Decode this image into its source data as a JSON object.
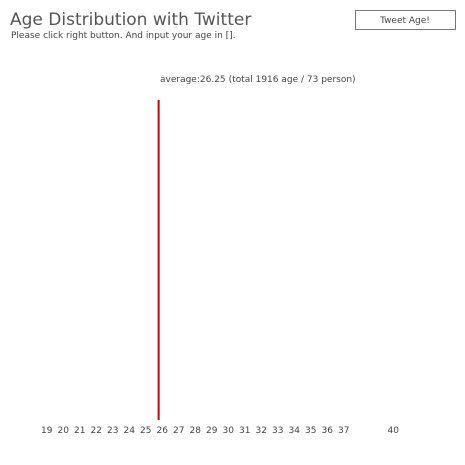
{
  "header": {
    "title": "Age Distribution with Twitter",
    "subtitle": "Please click right button. And input your age in []."
  },
  "button": {
    "label": "Tweet Age!"
  },
  "average": {
    "prefix": "average:",
    "value": 26.25,
    "detail": "(total 1916 age / 73 person)",
    "color": "#cc0000"
  },
  "axis": {
    "labels": [
      19,
      20,
      21,
      22,
      23,
      24,
      25,
      26,
      27,
      28,
      29,
      30,
      31,
      32,
      33,
      34,
      35,
      36,
      37,
      40
    ]
  }
}
